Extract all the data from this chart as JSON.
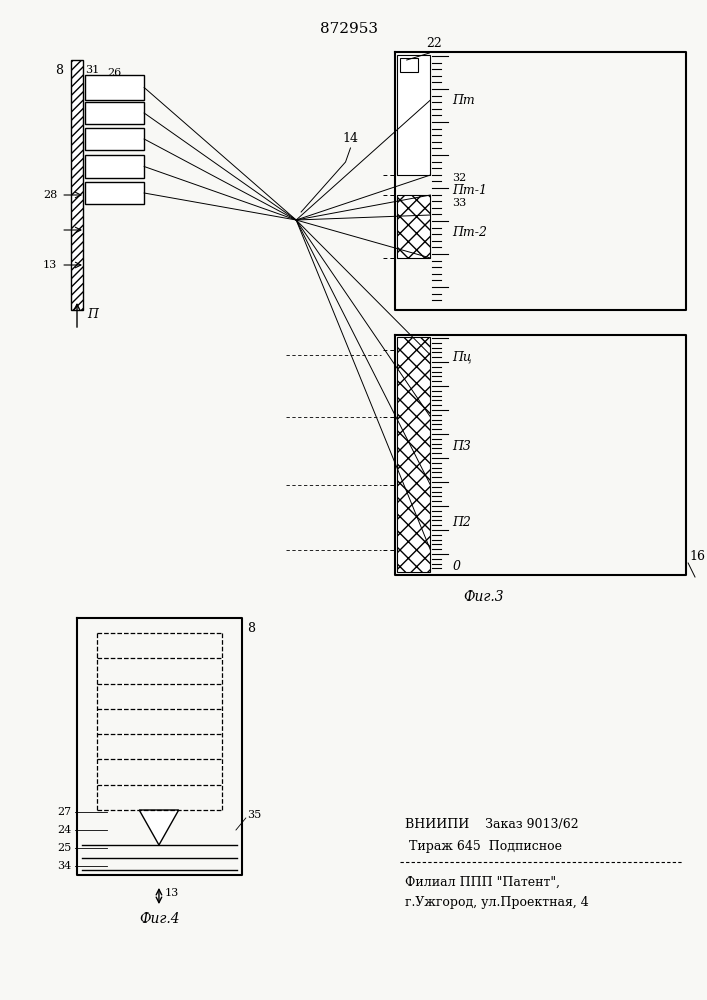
{
  "title": "872953",
  "background_color": "#f8f8f5",
  "fig3_label": "Фиг.3",
  "fig4_label": "Фиг.4",
  "footer_line1": "ВНИИПИ    Заказ 9013/62",
  "footer_line2": " Тираж 645  Подписное",
  "footer_line3": "Филиал ППП \"Патент\",",
  "footer_line4": "г.Ужгород, ул.Проектная, 4"
}
